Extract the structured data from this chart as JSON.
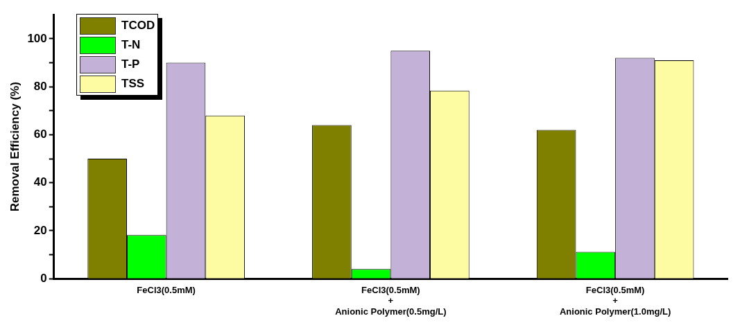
{
  "chart_data": {
    "type": "bar",
    "ylabel": "Removal Efficiency (%)",
    "categories": [
      "FeCl3(0.5mM)",
      "FeCl3(0.5mM)\n+\nAnionic Polymer(0.5mg/L)",
      "FeCl3(0.5mM)\n+\nAnionic Polymer(1.0mg/L)"
    ],
    "series": [
      {
        "name": "TCOD",
        "color": "#808000",
        "values": [
          50,
          64,
          62
        ]
      },
      {
        "name": "T-N",
        "color": "#00ff00",
        "values": [
          18.2,
          4,
          11.2
        ]
      },
      {
        "name": "T-P",
        "color": "#c3b1d8",
        "values": [
          90,
          95,
          92
        ]
      },
      {
        "name": "TSS",
        "color": "#fdfca2",
        "values": [
          68,
          78.4,
          91
        ]
      }
    ],
    "ylim": [
      0,
      110
    ],
    "yticks": [
      0,
      {
        "value": 10,
        "label": null
      },
      20,
      {
        "value": 30,
        "label": null
      },
      40,
      {
        "value": 50,
        "label": null
      },
      60,
      {
        "value": 70,
        "label": null
      },
      80,
      {
        "value": 90,
        "label": null
      },
      100
    ],
    "grid": false,
    "legend": "top left"
  }
}
